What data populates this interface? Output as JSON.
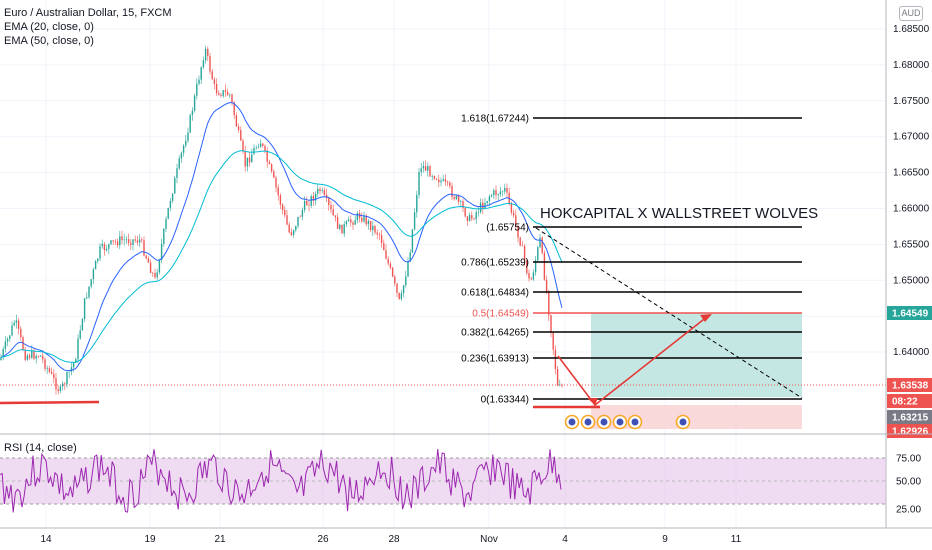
{
  "header": {
    "symbol": "Euro / Australian Dollar, 15, FXCM",
    "ema20": "EMA (20, close, 0)",
    "ema50": "EMA (50, close, 0)",
    "currency": "AUD"
  },
  "rsi": {
    "label": "RSI (14, close)",
    "ticks": [
      "75.00",
      "50.00",
      "25.00"
    ]
  },
  "annotation_title": "HOKCAPITAL X WALLSTREET WOLVES",
  "price_axis": [
    "1.68500",
    "1.68000",
    "1.67500",
    "1.67000",
    "1.66500",
    "1.66000",
    "1.65500",
    "1.65000",
    "1.64500",
    "1.64000"
  ],
  "price_tags": [
    {
      "text": "1.64549",
      "color": "#26a69a"
    },
    {
      "text": "1.63538",
      "color": "#ef5350"
    },
    {
      "text": "08:22",
      "color": "#ef5350"
    },
    {
      "text": "1.63215",
      "color": "#787b86"
    },
    {
      "text": "1.62926",
      "color": "#ef5350"
    }
  ],
  "time_axis": [
    "14",
    "19",
    "21",
    "26",
    "28",
    "Nov",
    "4",
    "9",
    "11"
  ],
  "fib_levels": [
    {
      "label": "1.618(1.67244)",
      "price": 1.67244,
      "color": "#000000"
    },
    {
      "label": "(1.65754)",
      "price": 1.65754,
      "color": "#000000"
    },
    {
      "label": "0.786(1.65239)",
      "price": 1.65239,
      "color": "#000000"
    },
    {
      "label": "0.618(1.64834)",
      "price": 1.64834,
      "color": "#000000"
    },
    {
      "label": "0.5(1.64549)",
      "price": 1.64549,
      "color": "#ef5350"
    },
    {
      "label": "0.382(1.64265)",
      "price": 1.64265,
      "color": "#000000"
    },
    {
      "label": "0.236(1.63913)",
      "price": 1.63913,
      "color": "#000000"
    },
    {
      "label": "0(1.63344)",
      "price": 1.63344,
      "color": "#000000"
    }
  ],
  "colors": {
    "up": "#26a69a",
    "down": "#ef5350",
    "ema20": "#2962ff",
    "ema50": "#00bcd4",
    "rsi": "#9c27b0",
    "rsi_band": "#e1bee7",
    "target_zone": "#b2dfdb",
    "stop_zone": "#f8cfcf",
    "support": "#e53935"
  },
  "event_icons": [
    "calendar-icon",
    "calendar-icon",
    "calendar-icon",
    "calendar-icon",
    "calendar-icon",
    "calendar-icon"
  ]
}
